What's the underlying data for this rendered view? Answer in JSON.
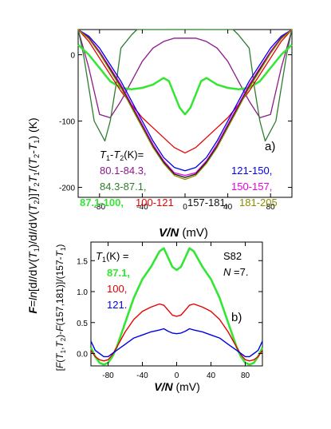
{
  "figure": {
    "ylabel_top": "F=ln[dI/dV(T1)/dI/dV(T2)]T2T1/(T2-T1) (K)",
    "ylabel_bottom": "[F(T1,T2)-F(157,181)]/(157-T1)"
  },
  "chart_data": [
    {
      "type": "line",
      "panel_label": "a)",
      "xlabel": "V/N (mV)",
      "ylabel": "F=ln[dI/dV(T1)/dI/dV(T2)]T2T1/(T2-T1) (K)",
      "xlim": [
        -100,
        100
      ],
      "ylim": [
        -215,
        38
      ],
      "xticks": [
        -80,
        -40,
        0,
        40,
        80
      ],
      "yticks": [
        0,
        -100,
        -200
      ],
      "xtick_labels": [
        "-80",
        "-40",
        "0",
        "40",
        "80"
      ],
      "ytick_labels": [
        "0",
        "-100",
        "-200"
      ],
      "legend_title": "T1-T2(K)=",
      "series": [
        {
          "name": "80.1-84.3,",
          "color": "#8b1a8b",
          "x": [
            -100,
            -90,
            -80,
            -70,
            -60,
            -50,
            -40,
            -30,
            -20,
            -10,
            0,
            10,
            20,
            30,
            40,
            50,
            60,
            70,
            80,
            90,
            100
          ],
          "y": [
            38,
            -20,
            -90,
            -95,
            -70,
            -40,
            -10,
            10,
            20,
            25,
            25,
            25,
            20,
            10,
            -10,
            -40,
            -70,
            -95,
            -90,
            -20,
            38
          ]
        },
        {
          "name": "84.3-87.1,",
          "color": "#2e7d2e",
          "x": [
            -100,
            -95,
            -85,
            -75,
            -70,
            -65,
            -60,
            -50,
            -45,
            -40,
            -35,
            -30,
            -25,
            -20,
            -15,
            -10,
            -5,
            0,
            5,
            10,
            15,
            20,
            25,
            30,
            35,
            40,
            45,
            50,
            60,
            65,
            70,
            75,
            85,
            95,
            100
          ],
          "y": [
            38,
            0,
            -100,
            -130,
            -100,
            -50,
            10,
            30,
            38,
            38,
            38,
            38,
            38,
            38,
            38,
            38,
            38,
            38,
            38,
            38,
            38,
            38,
            38,
            38,
            38,
            38,
            38,
            30,
            10,
            -50,
            -100,
            -130,
            -100,
            0,
            38
          ]
        },
        {
          "name": "87.1-100,",
          "color": "#33e633",
          "x": [
            -100,
            -90,
            -80,
            -70,
            -60,
            -50,
            -40,
            -30,
            -25,
            -20,
            -15,
            -10,
            -5,
            0,
            5,
            10,
            15,
            20,
            25,
            30,
            40,
            50,
            60,
            70,
            80,
            90,
            100
          ],
          "y": [
            15,
            0,
            -20,
            -40,
            -50,
            -52,
            -50,
            -45,
            -40,
            -35,
            -40,
            -60,
            -80,
            -90,
            -80,
            -60,
            -40,
            -35,
            -40,
            -45,
            -50,
            -52,
            -50,
            -40,
            -20,
            0,
            15
          ]
        },
        {
          "name": "100-121",
          "color": "#e60000",
          "x": [
            -100,
            -90,
            -80,
            -70,
            -60,
            -50,
            -40,
            -30,
            -20,
            -10,
            0,
            10,
            20,
            30,
            40,
            50,
            60,
            70,
            80,
            90,
            100
          ],
          "y": [
            38,
            20,
            -5,
            -30,
            -55,
            -75,
            -95,
            -110,
            -125,
            -140,
            -148,
            -140,
            -125,
            -110,
            -95,
            -75,
            -55,
            -30,
            -5,
            20,
            38
          ]
        },
        {
          "name": "121-150,",
          "color": "#0000e6",
          "x": [
            -100,
            -90,
            -80,
            -70,
            -60,
            -50,
            -40,
            -30,
            -20,
            -10,
            0,
            10,
            20,
            30,
            40,
            50,
            60,
            70,
            80,
            90,
            100
          ],
          "y": [
            38,
            28,
            10,
            -15,
            -40,
            -70,
            -100,
            -130,
            -155,
            -170,
            -175,
            -170,
            -155,
            -130,
            -100,
            -70,
            -40,
            -15,
            10,
            28,
            38
          ]
        },
        {
          "name": "150-157,",
          "color": "#e600e6",
          "x": [
            -100,
            -90,
            -80,
            -70,
            -60,
            -50,
            -40,
            -30,
            -20,
            -10,
            0,
            10,
            20,
            30,
            40,
            50,
            60,
            70,
            80,
            90,
            100
          ],
          "y": [
            38,
            26,
            5,
            -20,
            -45,
            -75,
            -105,
            -135,
            -160,
            -178,
            -182,
            -178,
            -160,
            -135,
            -105,
            -75,
            -45,
            -20,
            5,
            26,
            38
          ]
        },
        {
          "name": "157-181,",
          "color": "#111111",
          "x": [
            -100,
            -90,
            -80,
            -70,
            -60,
            -50,
            -40,
            -30,
            -20,
            -10,
            0,
            10,
            20,
            30,
            40,
            50,
            60,
            70,
            80,
            90,
            100
          ],
          "y": [
            38,
            25,
            3,
            -22,
            -48,
            -78,
            -108,
            -138,
            -162,
            -180,
            -185,
            -180,
            -162,
            -138,
            -108,
            -78,
            -48,
            -22,
            3,
            25,
            38
          ]
        },
        {
          "name": "181-205",
          "color": "#8b8b00",
          "x": [
            -100,
            -90,
            -80,
            -70,
            -60,
            -50,
            -40,
            -30,
            -20,
            -10,
            0,
            10,
            20,
            30,
            40,
            50,
            60,
            70,
            80,
            90,
            100
          ],
          "y": [
            38,
            24,
            2,
            -24,
            -50,
            -80,
            -110,
            -140,
            -164,
            -182,
            -188,
            -182,
            -164,
            -140,
            -110,
            -80,
            -50,
            -24,
            2,
            24,
            38
          ]
        }
      ]
    },
    {
      "type": "line",
      "panel_label": "b)",
      "xlabel": "V/N (mV)",
      "ylabel": "[F(T1,T2)-F(157,181)]/(157-T1)",
      "xlim": [
        -100,
        100
      ],
      "ylim": [
        -0.2,
        1.8
      ],
      "xticks": [
        -80,
        -40,
        0,
        40,
        80
      ],
      "yticks": [
        0.0,
        0.5,
        1.0,
        1.5
      ],
      "xtick_labels": [
        "-80",
        "-40",
        "0",
        "40",
        "80"
      ],
      "ytick_labels": [
        "0.0",
        "0.5",
        "1.0",
        "1.5"
      ],
      "legend_title": "T1(K) =",
      "annotation": [
        "S82",
        "N =7."
      ],
      "series": [
        {
          "name": "87.1,",
          "color": "#33e633",
          "x": [
            -100,
            -95,
            -90,
            -85,
            -80,
            -75,
            -70,
            -60,
            -50,
            -40,
            -30,
            -20,
            -15,
            -10,
            -5,
            0,
            5,
            10,
            15,
            20,
            30,
            40,
            50,
            60,
            70,
            75,
            80,
            85,
            90,
            95,
            100
          ],
          "y": [
            0.1,
            -0.05,
            -0.15,
            -0.18,
            -0.15,
            -0.05,
            0.1,
            0.5,
            0.9,
            1.2,
            1.4,
            1.65,
            1.7,
            1.55,
            1.4,
            1.35,
            1.4,
            1.55,
            1.7,
            1.65,
            1.4,
            1.2,
            0.9,
            0.5,
            0.1,
            -0.05,
            -0.15,
            -0.18,
            -0.15,
            -0.05,
            0.1
          ]
        },
        {
          "name": "100,",
          "color": "#e60000",
          "x": [
            -100,
            -95,
            -90,
            -85,
            -80,
            -75,
            -70,
            -60,
            -50,
            -40,
            -30,
            -20,
            -15,
            -10,
            -5,
            0,
            5,
            10,
            15,
            20,
            30,
            40,
            50,
            60,
            70,
            75,
            80,
            85,
            90,
            95,
            100
          ],
          "y": [
            0.05,
            -0.05,
            -0.1,
            -0.12,
            -0.1,
            -0.02,
            0.1,
            0.35,
            0.55,
            0.68,
            0.75,
            0.8,
            0.78,
            0.7,
            0.62,
            0.6,
            0.62,
            0.7,
            0.78,
            0.8,
            0.75,
            0.68,
            0.55,
            0.35,
            0.1,
            -0.02,
            -0.1,
            -0.12,
            -0.1,
            -0.05,
            0.05
          ]
        },
        {
          "name": "121.",
          "color": "#0000e6",
          "x": [
            -100,
            -95,
            -90,
            -85,
            -80,
            -75,
            -70,
            -60,
            -50,
            -40,
            -30,
            -20,
            -15,
            -10,
            -5,
            0,
            5,
            10,
            15,
            20,
            30,
            40,
            50,
            60,
            70,
            75,
            80,
            85,
            90,
            95,
            100
          ],
          "y": [
            0.2,
            0.05,
            0.0,
            -0.05,
            -0.05,
            0.0,
            0.05,
            0.15,
            0.25,
            0.3,
            0.35,
            0.38,
            0.4,
            0.36,
            0.33,
            0.32,
            0.33,
            0.36,
            0.4,
            0.38,
            0.35,
            0.3,
            0.25,
            0.15,
            0.05,
            0.0,
            -0.05,
            -0.05,
            0.0,
            0.05,
            0.2
          ]
        }
      ]
    }
  ]
}
